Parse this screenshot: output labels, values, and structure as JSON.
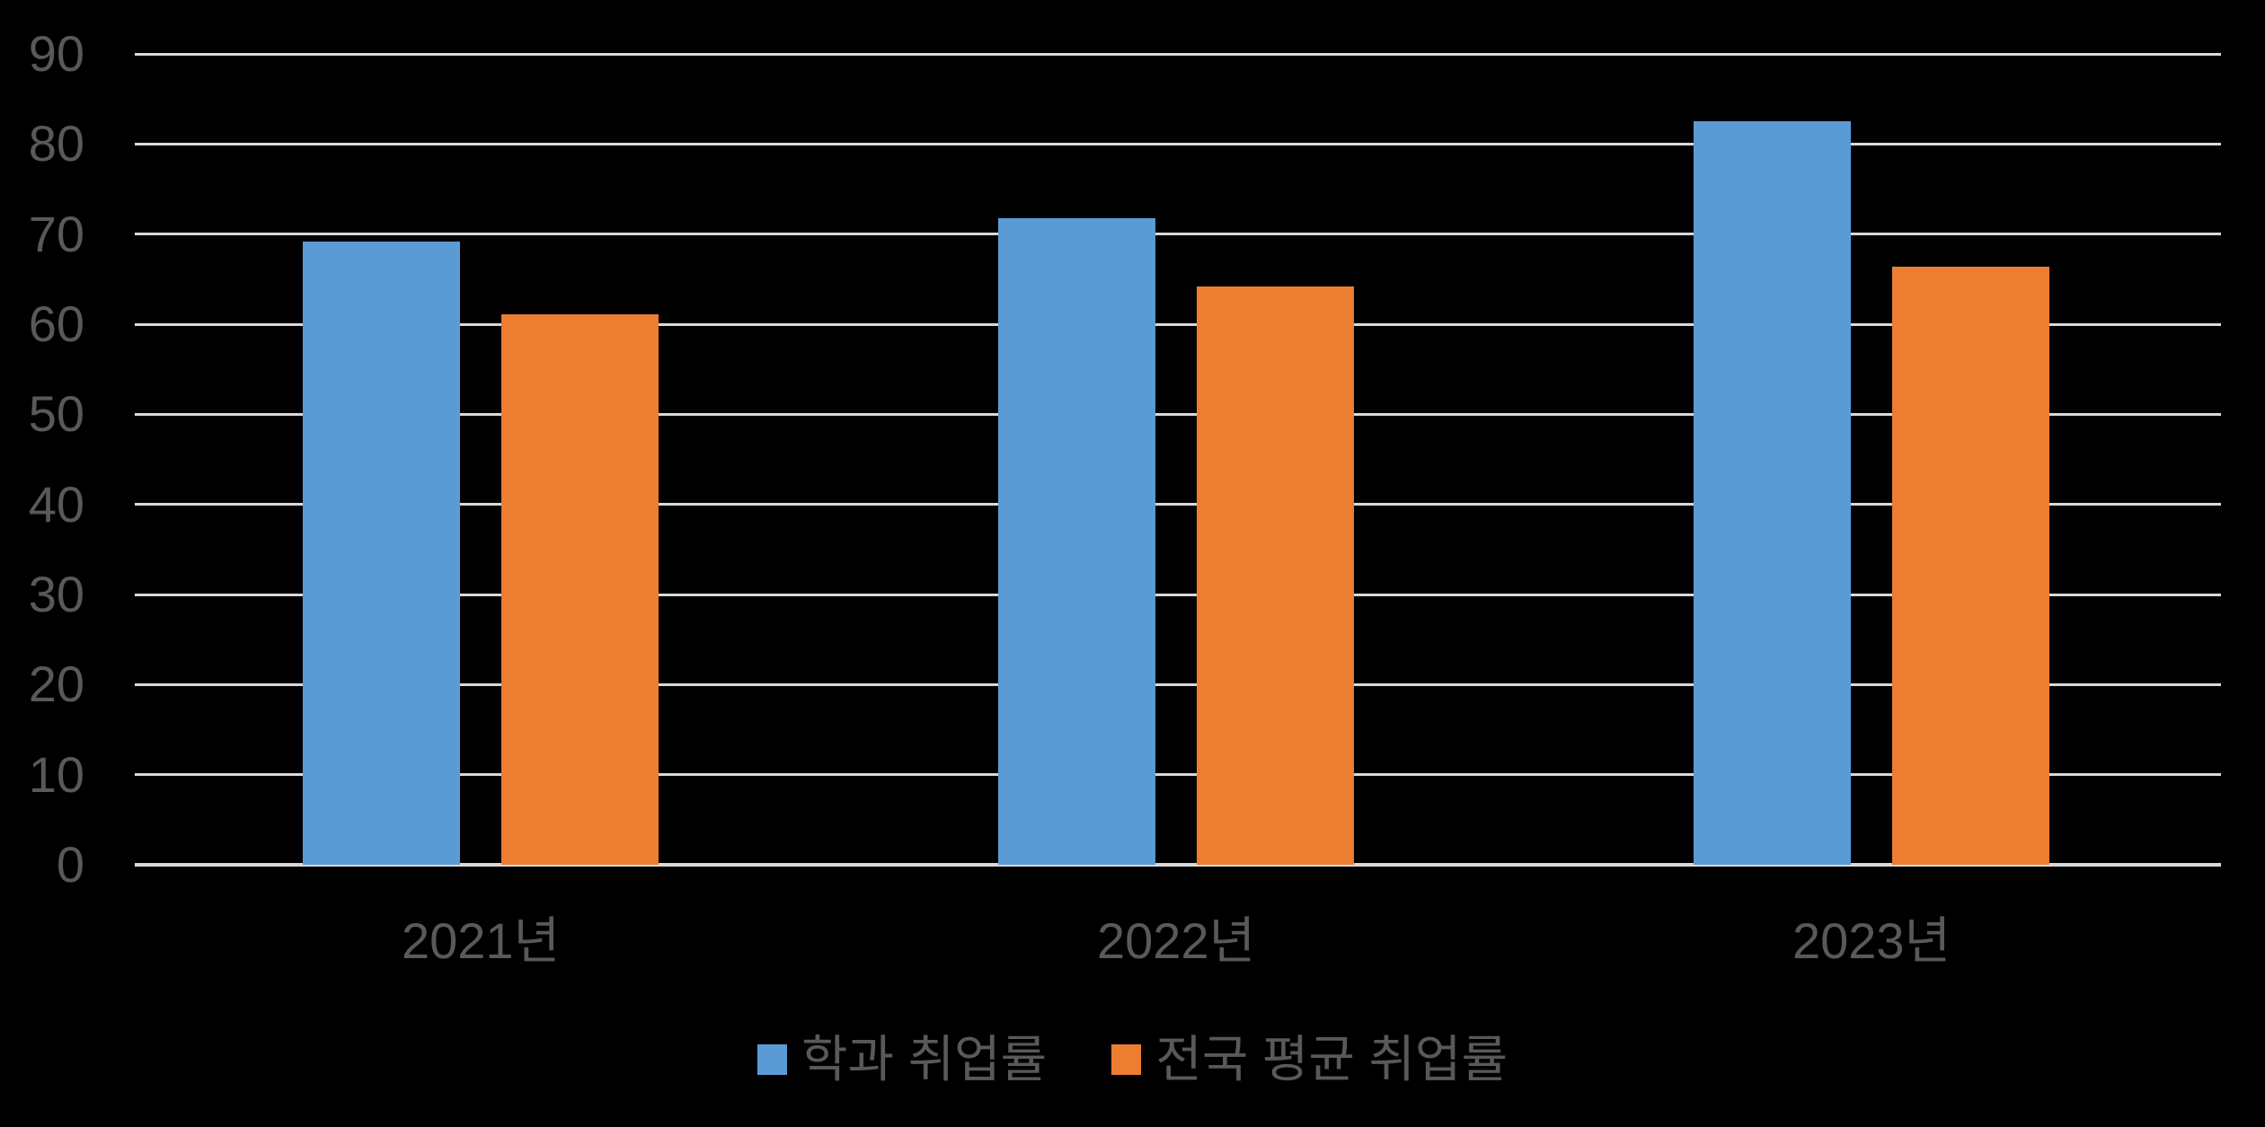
{
  "chart_data": {
    "type": "bar",
    "title": "",
    "xlabel": "",
    "ylabel": "",
    "categories": [
      "2021년",
      "2022년",
      "2023년"
    ],
    "series": [
      {
        "name": "학과 취업률",
        "color": "#5B9BD5",
        "values": [
          69.2,
          71.8,
          82.5
        ]
      },
      {
        "name": "전국 평균 취업률",
        "color": "#ED7D31",
        "values": [
          61.1,
          64.2,
          66.4
        ]
      }
    ],
    "ylim": [
      0,
      90
    ],
    "yticks": [
      0,
      10,
      20,
      30,
      40,
      50,
      60,
      70,
      80,
      90
    ],
    "grid": true,
    "legend_position": "bottom",
    "background_color": "#000000",
    "gridline_color": "#D9D9D9",
    "tick_label_color": "#595959"
  }
}
